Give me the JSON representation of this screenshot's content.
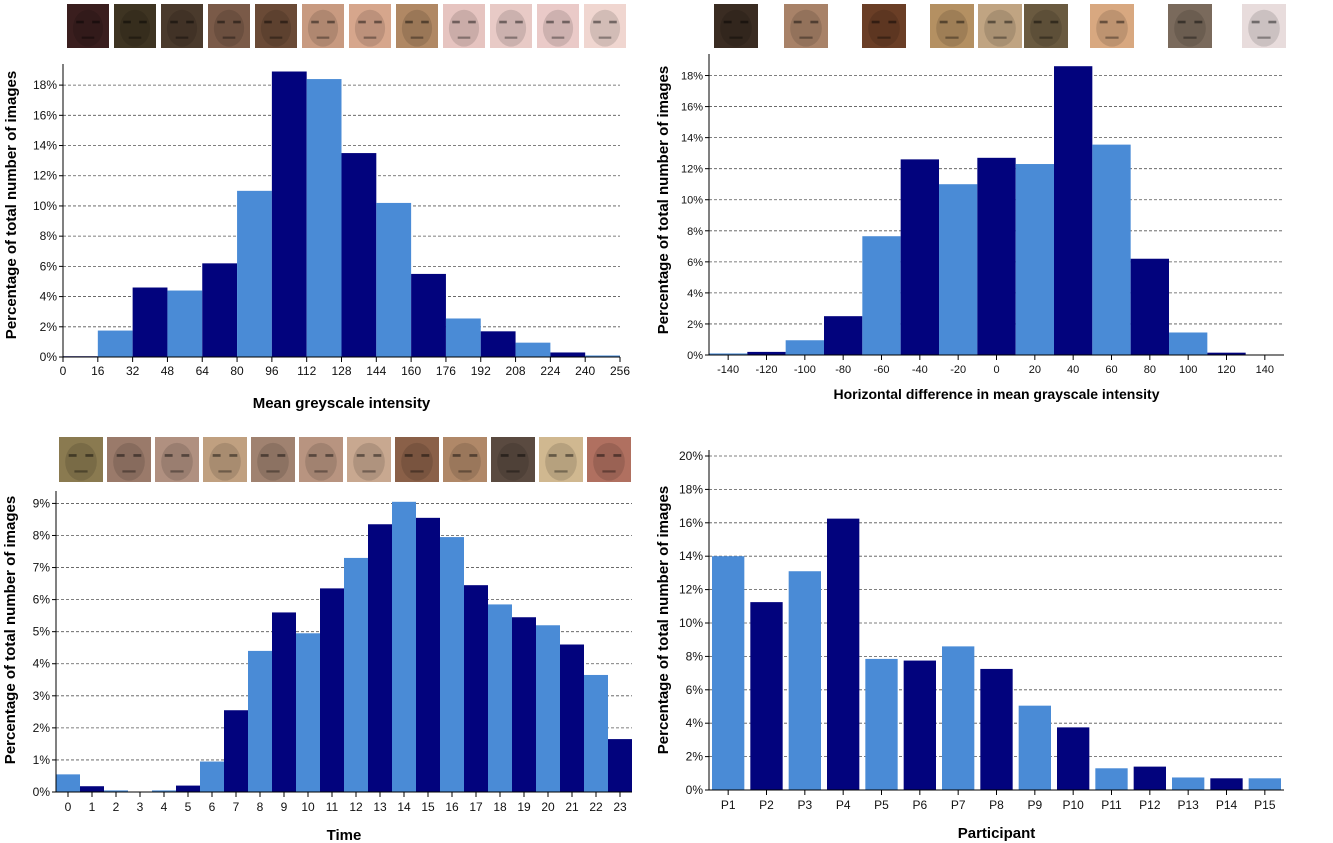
{
  "colors": {
    "light": "#4a8bd6",
    "dark": "#02037d",
    "grid": "#555555"
  },
  "face_icon_name": "face-thumbnail",
  "chart_data": [
    {
      "type": "bar",
      "xlabel": "Mean greyscale intensity",
      "ylabel": "Percentage of total number of images",
      "xlim": [
        0,
        256
      ],
      "ylim": [
        0,
        19
      ],
      "x_ticks": [
        0,
        16,
        32,
        48,
        64,
        80,
        96,
        112,
        128,
        144,
        160,
        176,
        192,
        208,
        224,
        240,
        256
      ],
      "y_ticks": [
        "0%",
        "2%",
        "4%",
        "6%",
        "8%",
        "10%",
        "12%",
        "14%",
        "16%",
        "18%"
      ],
      "bin_width": 16,
      "bins": [
        {
          "start": 0,
          "value": 0.05,
          "shade": "dark"
        },
        {
          "start": 16,
          "value": 1.75,
          "shade": "light"
        },
        {
          "start": 32,
          "value": 4.6,
          "shade": "dark"
        },
        {
          "start": 48,
          "value": 4.4,
          "shade": "light"
        },
        {
          "start": 64,
          "value": 6.2,
          "shade": "dark"
        },
        {
          "start": 80,
          "value": 11.0,
          "shade": "light"
        },
        {
          "start": 96,
          "value": 18.9,
          "shade": "dark"
        },
        {
          "start": 112,
          "value": 18.4,
          "shade": "light"
        },
        {
          "start": 128,
          "value": 13.5,
          "shade": "dark"
        },
        {
          "start": 144,
          "value": 10.2,
          "shade": "light"
        },
        {
          "start": 160,
          "value": 5.5,
          "shade": "dark"
        },
        {
          "start": 176,
          "value": 2.55,
          "shade": "light"
        },
        {
          "start": 192,
          "value": 1.7,
          "shade": "dark"
        },
        {
          "start": 208,
          "value": 0.95,
          "shade": "light"
        },
        {
          "start": 224,
          "value": 0.3,
          "shade": "dark"
        },
        {
          "start": 240,
          "value": 0.1,
          "shade": "light"
        }
      ],
      "thumbnails": [
        "#3a1e1e",
        "#3e3422",
        "#4a3a2c",
        "#7a5a48",
        "#6a4a36",
        "#c89a80",
        "#d6a68c",
        "#b08864",
        "#e6c4c0",
        "#e8cac6",
        "#eacac8",
        "#f0d6d0"
      ]
    },
    {
      "type": "bar",
      "xlabel": "Horizontal difference in mean grayscale intensity",
      "ylabel": "Percentage of total number of images",
      "xlim": [
        -150,
        150
      ],
      "ylim": [
        0,
        19
      ],
      "x_ticks": [
        -140,
        -120,
        -100,
        -80,
        -60,
        -40,
        -20,
        0,
        20,
        40,
        60,
        80,
        100,
        120,
        140
      ],
      "y_ticks": [
        "0%",
        "2%",
        "4%",
        "6%",
        "8%",
        "10%",
        "12%",
        "14%",
        "16%",
        "18%"
      ],
      "bin_width": 20,
      "bins": [
        {
          "start": -150,
          "value": 0.1,
          "shade": "light"
        },
        {
          "start": -130,
          "value": 0.2,
          "shade": "dark"
        },
        {
          "start": -110,
          "value": 0.95,
          "shade": "light"
        },
        {
          "start": -90,
          "value": 2.5,
          "shade": "dark"
        },
        {
          "start": -70,
          "value": 7.65,
          "shade": "light"
        },
        {
          "start": -50,
          "value": 12.6,
          "shade": "dark"
        },
        {
          "start": -30,
          "value": 11.0,
          "shade": "light"
        },
        {
          "start": -10,
          "value": 12.7,
          "shade": "dark"
        },
        {
          "start": 10,
          "value": 12.3,
          "shade": "light"
        },
        {
          "start": 30,
          "value": 18.6,
          "shade": "dark"
        },
        {
          "start": 50,
          "value": 13.55,
          "shade": "light"
        },
        {
          "start": 70,
          "value": 6.2,
          "shade": "dark"
        },
        {
          "start": 90,
          "value": 1.45,
          "shade": "light"
        },
        {
          "start": 110,
          "value": 0.15,
          "shade": "dark"
        }
      ],
      "thumbnails": [
        "#3a2c22",
        "#a88268",
        "#6a3e26",
        "#b49062",
        "#c0a482",
        "#6a5a40",
        "#d8a880",
        "#7a6a5c",
        "#e8dcdc"
      ]
    },
    {
      "type": "bar",
      "xlabel": "Time",
      "ylabel": "Percentage of total number of images",
      "ylim": [
        0,
        9.2
      ],
      "categories": [
        "0",
        "1",
        "2",
        "3",
        "4",
        "5",
        "6",
        "7",
        "8",
        "9",
        "10",
        "11",
        "12",
        "13",
        "14",
        "15",
        "16",
        "17",
        "18",
        "19",
        "20",
        "21",
        "22",
        "23"
      ],
      "values": [
        0.55,
        0.18,
        0.05,
        0.0,
        0.05,
        0.2,
        0.95,
        2.55,
        4.4,
        5.6,
        4.95,
        6.35,
        7.3,
        8.35,
        9.05,
        8.55,
        7.95,
        6.45,
        5.85,
        5.45,
        5.2,
        4.6,
        3.65,
        1.65
      ],
      "shades": [
        "light",
        "dark",
        "light",
        "dark",
        "light",
        "dark",
        "light",
        "dark",
        "light",
        "dark",
        "light",
        "dark",
        "light",
        "dark",
        "light",
        "dark",
        "light",
        "dark",
        "light",
        "dark",
        "light",
        "dark",
        "light",
        "dark"
      ],
      "y_ticks": [
        "0%",
        "1%",
        "2%",
        "3%",
        "4%",
        "5%",
        "6%",
        "7%",
        "8%",
        "9%"
      ],
      "thumbnails": [
        "#8a7a50",
        "#9a7a6a",
        "#b09080",
        "#c0a080",
        "#a08270",
        "#b89480",
        "#c8a890",
        "#8a6048",
        "#b08868",
        "#5a4a40",
        "#d0b890",
        "#b07060"
      ]
    },
    {
      "type": "bar",
      "xlabel": "Participant",
      "ylabel": "Percentage of total number of images",
      "ylim": [
        0,
        20
      ],
      "categories": [
        "P1",
        "P2",
        "P3",
        "P4",
        "P5",
        "P6",
        "P7",
        "P8",
        "P9",
        "P10",
        "P11",
        "P12",
        "P13",
        "P14",
        "P15"
      ],
      "values": [
        14.0,
        11.25,
        13.1,
        16.25,
        7.85,
        7.75,
        8.6,
        7.25,
        5.05,
        3.75,
        1.3,
        1.4,
        0.75,
        0.7,
        0.7
      ],
      "shades": [
        "light",
        "dark",
        "light",
        "dark",
        "light",
        "dark",
        "light",
        "dark",
        "light",
        "dark",
        "light",
        "dark",
        "light",
        "dark",
        "light"
      ],
      "y_ticks": [
        "0%",
        "2%",
        "4%",
        "6%",
        "8%",
        "10%",
        "12%",
        "14%",
        "16%",
        "18%",
        "20%"
      ]
    }
  ]
}
